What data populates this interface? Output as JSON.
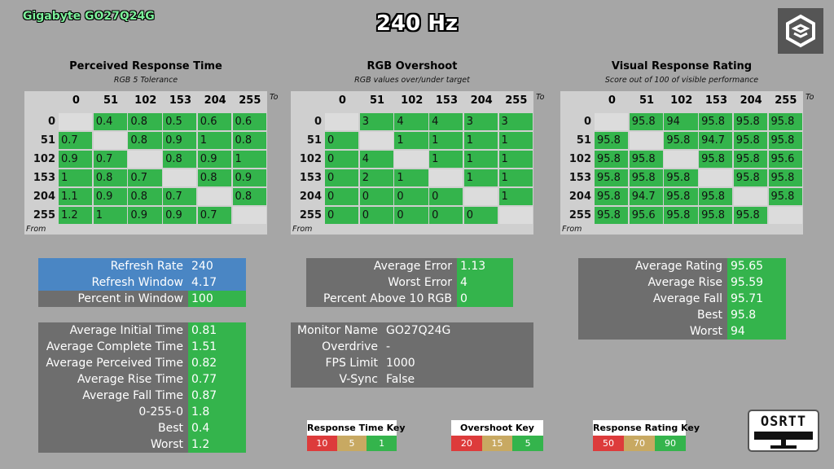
{
  "header": {
    "brand": "Gigabyte GO27Q24G",
    "title": "240 Hz"
  },
  "matrices": [
    {
      "title": "Perceived Response Time",
      "subtitle": "RGB 5 Tolerance",
      "to_label": "To",
      "from_label": "From",
      "columns": [
        0,
        51,
        102,
        153,
        204,
        255
      ],
      "rows": [
        {
          "label": 0,
          "cells": [
            null,
            0.4,
            0.8,
            0.5,
            0.6,
            0.6
          ]
        },
        {
          "label": 51,
          "cells": [
            0.7,
            null,
            0.8,
            0.9,
            1,
            0.8
          ]
        },
        {
          "label": 102,
          "cells": [
            0.9,
            0.7,
            null,
            0.8,
            0.9,
            1
          ]
        },
        {
          "label": 153,
          "cells": [
            1,
            0.8,
            0.7,
            null,
            0.8,
            0.9
          ]
        },
        {
          "label": 204,
          "cells": [
            1.1,
            0.9,
            0.8,
            0.7,
            null,
            0.8
          ]
        },
        {
          "label": 255,
          "cells": [
            1.2,
            1,
            0.9,
            0.9,
            0.7,
            null
          ]
        }
      ]
    },
    {
      "title": "RGB Overshoot",
      "subtitle": "RGB values over/under target",
      "to_label": "To",
      "from_label": "From",
      "columns": [
        0,
        51,
        102,
        153,
        204,
        255
      ],
      "rows": [
        {
          "label": 0,
          "cells": [
            null,
            3,
            4,
            4,
            3,
            3
          ]
        },
        {
          "label": 51,
          "cells": [
            0,
            null,
            1,
            1,
            1,
            1
          ]
        },
        {
          "label": 102,
          "cells": [
            0,
            4,
            null,
            1,
            1,
            1
          ]
        },
        {
          "label": 153,
          "cells": [
            0,
            2,
            1,
            null,
            1,
            1
          ]
        },
        {
          "label": 204,
          "cells": [
            0,
            0,
            0,
            0,
            null,
            1
          ]
        },
        {
          "label": 255,
          "cells": [
            0,
            0,
            0,
            0,
            0,
            null
          ]
        }
      ]
    },
    {
      "title": "Visual Response Rating",
      "subtitle": "Score out of 100 of visible performance",
      "to_label": "To",
      "from_label": "From",
      "columns": [
        0,
        51,
        102,
        153,
        204,
        255
      ],
      "rows": [
        {
          "label": 0,
          "cells": [
            null,
            95.8,
            94,
            95.8,
            95.8,
            95.8
          ]
        },
        {
          "label": 51,
          "cells": [
            95.8,
            null,
            95.8,
            94.7,
            95.8,
            95.8
          ]
        },
        {
          "label": 102,
          "cells": [
            95.8,
            95.8,
            null,
            95.8,
            95.8,
            95.6
          ]
        },
        {
          "label": 153,
          "cells": [
            95.8,
            95.8,
            95.8,
            null,
            95.8,
            95.8
          ]
        },
        {
          "label": 204,
          "cells": [
            95.8,
            94.7,
            95.8,
            95.8,
            null,
            95.8
          ]
        },
        {
          "label": 255,
          "cells": [
            95.8,
            95.6,
            95.8,
            95.8,
            95.8,
            null
          ]
        }
      ]
    }
  ],
  "stats": [
    {
      "rows": [
        {
          "label": "Refresh Rate",
          "value": 240
        },
        {
          "label": "Refresh Window",
          "value": 4.17
        },
        {
          "label": "Percent in Window",
          "value": 100
        }
      ]
    },
    {
      "rows": [
        {
          "label": "Average Initial Time",
          "value": 0.81
        },
        {
          "label": "Average Complete Time",
          "value": 1.51
        },
        {
          "label": "Average Perceived Time",
          "value": 0.82
        },
        {
          "label": "Average Rise Time",
          "value": 0.77
        },
        {
          "label": "Average Fall Time",
          "value": 0.87
        },
        {
          "label": "0-255-0",
          "value": 1.8
        },
        {
          "label": "Best",
          "value": 0.4
        },
        {
          "label": "Worst",
          "value": 1.2
        }
      ]
    },
    {
      "rows": [
        {
          "label": "Average Error",
          "value": 1.13
        },
        {
          "label": "Worst Error",
          "value": 4
        },
        {
          "label": "Percent Above 10 RGB",
          "value": 0
        }
      ]
    },
    {
      "rows": [
        {
          "label": "Monitor Name",
          "value": "GO27Q24G"
        },
        {
          "label": "Overdrive",
          "value": "-"
        },
        {
          "label": "FPS Limit",
          "value": 1000
        },
        {
          "label": "V-Sync",
          "value": "False"
        }
      ]
    },
    {
      "rows": [
        {
          "label": "Average Rating",
          "value": 95.65
        },
        {
          "label": "Average Rise",
          "value": 95.59
        },
        {
          "label": "Average Fall",
          "value": 95.71
        },
        {
          "label": "Best",
          "value": 95.8
        },
        {
          "label": "Worst",
          "value": 94
        }
      ]
    }
  ],
  "keys": [
    {
      "title": "Response Time Key",
      "values": [
        10,
        5,
        1
      ]
    },
    {
      "title": "Overshoot Key",
      "values": [
        20,
        15,
        5
      ]
    },
    {
      "title": "Response Rating Key",
      "values": [
        50,
        70,
        90
      ]
    }
  ],
  "logo": {
    "text": "OSRTT"
  }
}
